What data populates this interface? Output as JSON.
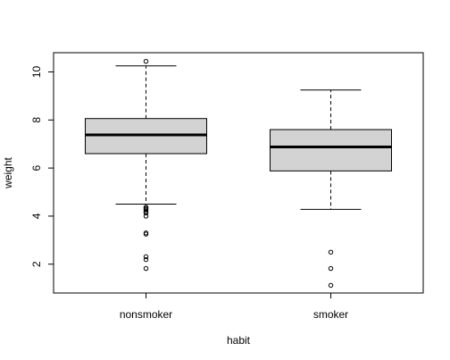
{
  "chart_data": {
    "type": "boxplot",
    "title": "",
    "xlabel": "habit",
    "ylabel": "weight",
    "ylim": [
      0.8,
      10.8
    ],
    "y_ticks": [
      2,
      4,
      6,
      8,
      10
    ],
    "box_fill": "#d3d3d3",
    "categories": [
      "nonsmoker",
      "smoker"
    ],
    "series": [
      {
        "category": "nonsmoker",
        "whisker_low": 4.5,
        "q1": 6.6,
        "median": 7.38,
        "q3": 8.06,
        "whisker_high": 10.25,
        "outliers": [
          10.44,
          4.37,
          4.33,
          4.28,
          4.22,
          4.16,
          4.13,
          4.0,
          3.3,
          3.25,
          2.31,
          2.19,
          1.82
        ]
      },
      {
        "category": "smoker",
        "whisker_low": 4.28,
        "q1": 5.88,
        "median": 6.88,
        "q3": 7.6,
        "whisker_high": 9.25,
        "outliers": [
          2.5,
          1.82,
          1.12
        ]
      }
    ]
  }
}
